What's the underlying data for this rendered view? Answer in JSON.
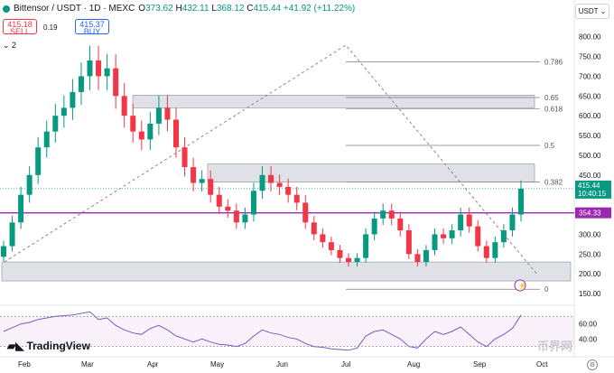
{
  "header": {
    "symbol": "Bittensor / USDT · 1D · MEXC",
    "o_label": "O",
    "o_val": "373.62",
    "h_label": "H",
    "h_val": "432.11",
    "l_label": "L",
    "l_val": "368.12",
    "c_label": "C",
    "c_val": "415.44",
    "change": "+41.92 (+11.22%)",
    "sell_price": "415.18",
    "sell_label": "SELL",
    "spread": "0.19",
    "buy_price": "415.37",
    "buy_label": "BUY",
    "indicator_count": "2"
  },
  "currency_selector": "USDT",
  "price_axis": {
    "ticks": [
      "800.00",
      "750.00",
      "700.00",
      "650.00",
      "600.00",
      "550.00",
      "500.00",
      "450.00",
      "400.00",
      "350.00",
      "300.00",
      "250.00",
      "200.00",
      "150.00"
    ],
    "current_price": "415.44",
    "countdown": "10:40:15",
    "hline_price": "354.33"
  },
  "fib_levels": [
    {
      "label": "0.786",
      "price": 736
    },
    {
      "label": "0.65",
      "price": 646
    },
    {
      "label": "0.618",
      "price": 617
    },
    {
      "label": "0.5",
      "price": 525
    },
    {
      "label": "0.382",
      "price": 432
    },
    {
      "label": "0",
      "price": 161
    }
  ],
  "rsi_axis": {
    "ticks": [
      "60.00",
      "40.00"
    ]
  },
  "time_axis": {
    "ticks": [
      "Feb",
      "Mar",
      "Apr",
      "May",
      "Jun",
      "Jul",
      "Aug",
      "Sep",
      "Oct"
    ]
  },
  "brand": {
    "name": "TradingView",
    "watermark": "币界网"
  },
  "colors": {
    "up": "#089981",
    "down": "#f23645",
    "hline": "#9c27b0",
    "zone": "#d1d4dc"
  },
  "chart_data": {
    "type": "candlestick",
    "ylim": [
      125,
      870
    ],
    "x": [
      "Jan-21",
      "Jan-25",
      "Jan-29",
      "Feb-02",
      "Feb-06",
      "Feb-10",
      "Feb-14",
      "Feb-18",
      "Feb-22",
      "Feb-26",
      "Mar-01",
      "Mar-05",
      "Mar-09",
      "Mar-13",
      "Mar-17",
      "Mar-21",
      "Mar-25",
      "Mar-29",
      "Apr-02",
      "Apr-06",
      "Apr-10",
      "Apr-14",
      "Apr-18",
      "Apr-22",
      "Apr-26",
      "Apr-30",
      "May-04",
      "May-08",
      "May-12",
      "May-16",
      "May-20",
      "May-24",
      "May-28",
      "Jun-01",
      "Jun-05",
      "Jun-09",
      "Jun-13",
      "Jun-17",
      "Jun-21",
      "Jun-25",
      "Jun-29",
      "Jul-03",
      "Jul-07",
      "Jul-11",
      "Jul-15",
      "Jul-19",
      "Jul-23",
      "Jul-27",
      "Jul-31",
      "Aug-04",
      "Aug-08",
      "Aug-12",
      "Aug-16",
      "Aug-20",
      "Aug-24",
      "Aug-28",
      "Sep-01",
      "Sep-05",
      "Sep-09",
      "Sep-13",
      "Sep-17"
    ],
    "close": [
      270,
      330,
      400,
      450,
      520,
      560,
      600,
      620,
      660,
      700,
      740,
      700,
      720,
      650,
      600,
      560,
      540,
      580,
      620,
      590,
      520,
      470,
      430,
      440,
      400,
      370,
      360,
      330,
      350,
      410,
      450,
      430,
      420,
      400,
      380,
      330,
      300,
      280,
      260,
      240,
      230,
      240,
      300,
      340,
      360,
      340,
      310,
      250,
      230,
      260,
      300,
      290,
      310,
      350,
      320,
      270,
      240,
      280,
      310,
      350,
      415.44
    ],
    "rsi": [
      50,
      55,
      60,
      62,
      66,
      68,
      70,
      71,
      72,
      74,
      76,
      66,
      68,
      58,
      52,
      48,
      46,
      54,
      58,
      52,
      44,
      40,
      36,
      40,
      36,
      33,
      32,
      30,
      34,
      44,
      52,
      48,
      46,
      42,
      40,
      34,
      30,
      29,
      27,
      26,
      25,
      28,
      44,
      50,
      52,
      46,
      40,
      30,
      28,
      40,
      50,
      46,
      50,
      56,
      46,
      36,
      30,
      40,
      46,
      54,
      72
    ]
  }
}
